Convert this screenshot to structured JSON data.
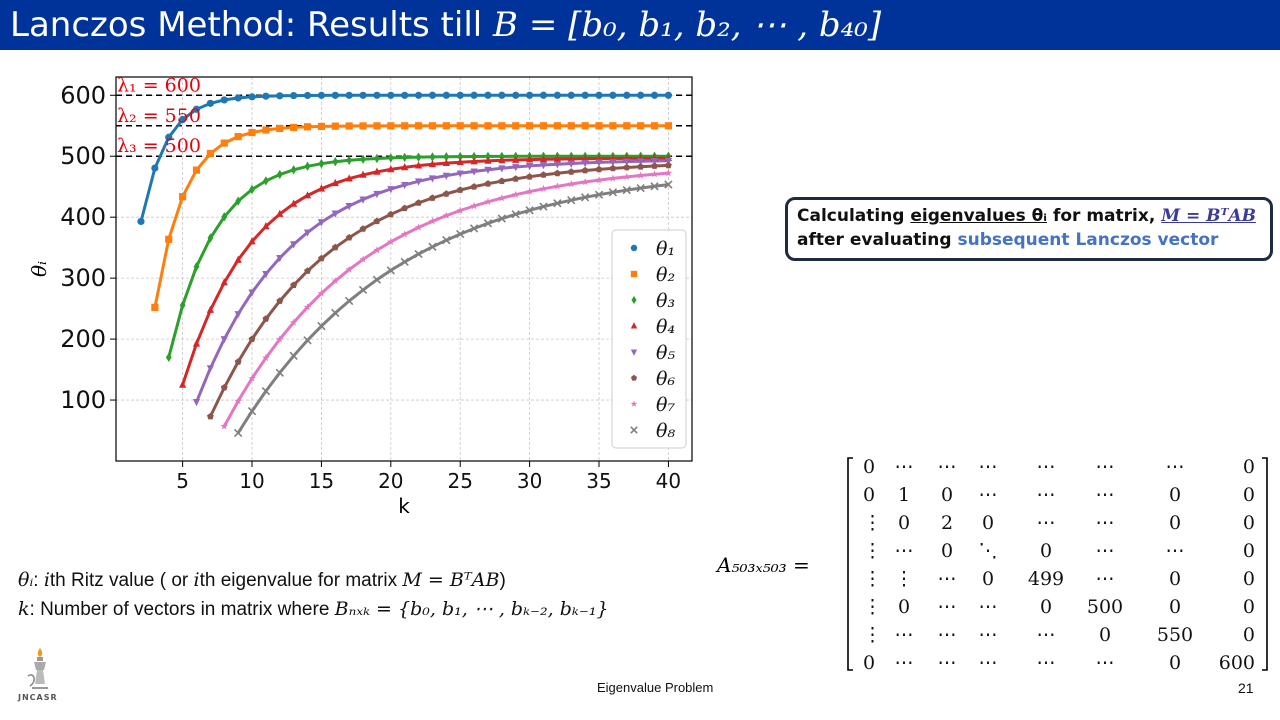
{
  "slide": {
    "title_prefix": "Lanczos Method: Results till ",
    "title_math": "B = [b₀, b₁, b₂, ⋯ , b₄₀]",
    "page_label": "Eigenvalue Problem",
    "page_number": "21",
    "logo_caption": "JNCASR"
  },
  "callout": {
    "line1_a": "Calculating ",
    "line1_b": "eigenvalues θᵢ",
    "line1_c": " for matrix, ",
    "line1_d": "M = BᵀAB",
    "line2_a": "after evaluating ",
    "line2_b": "subsequent Lanczos vector"
  },
  "definitions": {
    "theta_sym": "θᵢ",
    "theta_text": ":  ",
    "theta_i": "i",
    "theta_text2": "th Ritz value ( or ",
    "theta_i2": "i",
    "theta_text3": "th eigenvalue for matrix ",
    "theta_math": "M = BᵀAB",
    "theta_close": ")",
    "k_sym": "k",
    "k_text": ":  Number of vectors in matrix where ",
    "k_math": "Bₙₓₖ = {b₀, b₁, ⋯ , bₖ₋₂, bₖ₋₁}"
  },
  "matrix": {
    "label": "A₅₀₃ₓ₅₀₃ =",
    "rows": [
      [
        "0",
        "⋯",
        "⋯",
        "⋯",
        "⋯",
        "⋯",
        "⋯",
        "0"
      ],
      [
        "0",
        "1",
        "0",
        "⋯",
        "⋯",
        "⋯",
        "0",
        "0"
      ],
      [
        "⋮",
        "0",
        "2",
        "0",
        "⋯",
        "⋯",
        "0",
        "0"
      ],
      [
        "⋮",
        "⋯",
        "0",
        "⋱",
        "0",
        "⋯",
        "⋯",
        "0"
      ],
      [
        "⋮",
        "⋮",
        "⋯",
        "0",
        "499",
        "⋯",
        "0",
        "0"
      ],
      [
        "⋮",
        "0",
        "⋯",
        "⋯",
        "0",
        "500",
        "0",
        "0"
      ],
      [
        "⋮",
        "⋯",
        "⋯",
        "⋯",
        "⋯",
        "0",
        "550",
        "0"
      ],
      [
        "0",
        "⋯",
        "⋯",
        "⋯",
        "⋯",
        "⋯",
        "0",
        "600"
      ]
    ]
  },
  "colors": {
    "title_bar": "#003399",
    "annotation_red": "#e8000b",
    "callout_blue": "#4472c4"
  },
  "chart_data": {
    "type": "scatter",
    "xlabel": "k",
    "ylabel": "θᵢ",
    "xlim": [
      0.2,
      41.7
    ],
    "ylim": [
      0,
      630
    ],
    "xticks": [
      5,
      10,
      15,
      20,
      25,
      30,
      35,
      40
    ],
    "yticks": [
      100,
      200,
      300,
      400,
      500,
      600
    ],
    "grid": true,
    "legend_position": "right",
    "reference_lines": [
      {
        "y": 600,
        "label": "λ₁ = 600"
      },
      {
        "y": 550,
        "label": "λ₂ = 550"
      },
      {
        "y": 500,
        "label": "λ₃ = 500"
      }
    ],
    "series": [
      {
        "name": "θ₁",
        "color": "#1f77b4",
        "marker": "circle",
        "k_start": 2,
        "start": 393,
        "end": 600,
        "rate": 0.55
      },
      {
        "name": "θ₂",
        "color": "#ff7f0e",
        "marker": "square",
        "k_start": 3,
        "start": 252,
        "end": 550,
        "rate": 0.47
      },
      {
        "name": "θ₃",
        "color": "#2ca02c",
        "marker": "diamond",
        "k_start": 4,
        "start": 170,
        "end": 500,
        "rate": 0.3
      },
      {
        "name": "θ₄",
        "color": "#d62728",
        "marker": "triangle-up",
        "k_start": 5,
        "start": 125,
        "end": 497,
        "rate": 0.2
      },
      {
        "name": "θ₅",
        "color": "#9467bd",
        "marker": "triangle-down",
        "k_start": 6,
        "start": 97,
        "end": 495,
        "rate": 0.15
      },
      {
        "name": "θ₆",
        "color": "#8c564b",
        "marker": "pentagon",
        "k_start": 7,
        "start": 73,
        "end": 493,
        "rate": 0.12
      },
      {
        "name": "θ₇",
        "color": "#e377c2",
        "marker": "star",
        "k_start": 8,
        "start": 57,
        "end": 490,
        "rate": 0.1
      },
      {
        "name": "θ₈",
        "color": "#7f7f7f",
        "marker": "x",
        "k_start": 9,
        "start": 46,
        "end": 485,
        "rate": 0.085
      }
    ]
  }
}
